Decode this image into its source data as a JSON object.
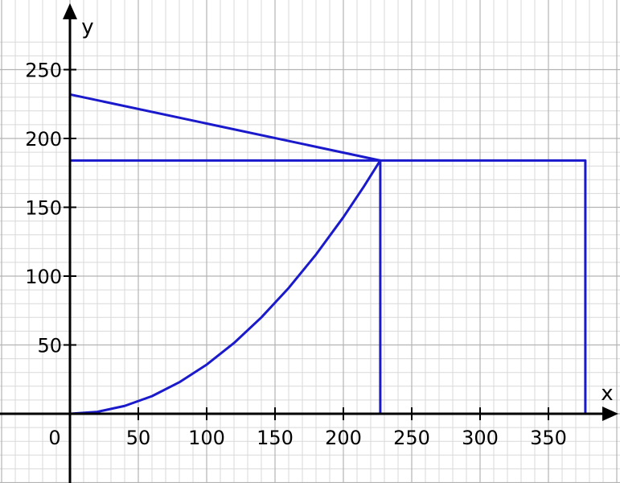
{
  "chart_data": {
    "type": "line",
    "title": "",
    "xlabel": "x",
    "ylabel": "y",
    "origin_label": "0",
    "xlim": [
      -50,
      400
    ],
    "ylim": [
      -50,
      275
    ],
    "x_ticks": [
      50,
      100,
      150,
      200,
      250,
      300,
      350
    ],
    "y_ticks": [
      50,
      100,
      150,
      200,
      250
    ],
    "x_tick_labels": [
      "50",
      "100",
      "150",
      "200",
      "250",
      "300",
      "350"
    ],
    "y_tick_labels": [
      "50",
      "100",
      "150",
      "200",
      "250"
    ],
    "grid": true,
    "grid_minor_step": 10,
    "grid_major_step": 50,
    "colors": {
      "series": "#1a1acc",
      "minor_grid": "#d9d9d9",
      "major_grid": "#b3b3b3",
      "axis": "#000000"
    },
    "series": [
      {
        "points": [
          [
            0,
            232
          ],
          [
            227,
            184
          ]
        ]
      },
      {
        "points": [
          [
            0,
            184
          ],
          [
            377,
            184
          ],
          [
            377,
            0
          ]
        ]
      },
      {
        "points": [
          [
            227,
            184
          ],
          [
            227,
            0
          ]
        ]
      },
      {
        "curve": "parabola",
        "points": [
          [
            0,
            0
          ],
          [
            20,
            1.4
          ],
          [
            40,
            5.7
          ],
          [
            60,
            12.8
          ],
          [
            80,
            22.9
          ],
          [
            100,
            35.7
          ],
          [
            120,
            51.4
          ],
          [
            140,
            70.0
          ],
          [
            160,
            91.4
          ],
          [
            180,
            115.7
          ],
          [
            200,
            142.8
          ],
          [
            215,
            165.1
          ],
          [
            227,
            184
          ]
        ]
      }
    ]
  }
}
